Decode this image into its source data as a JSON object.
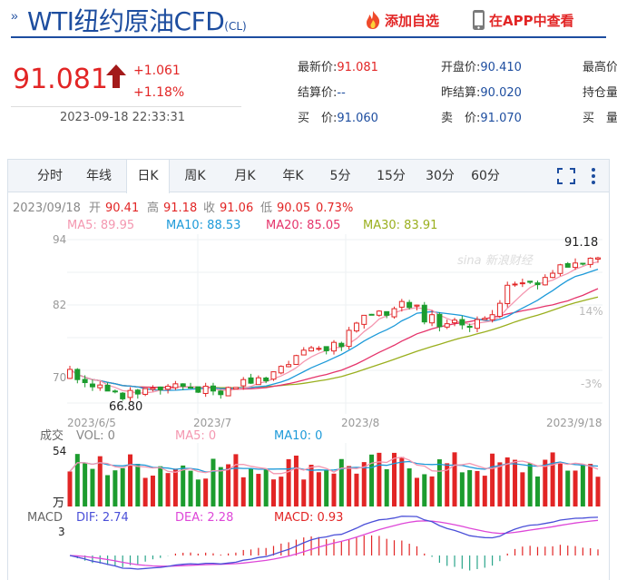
{
  "header": {
    "title": "WTI纽约原油CFD",
    "code": "(CL)",
    "add_watchlist": "添加自选",
    "view_app": "在APP中查看"
  },
  "quote": {
    "price": "91.081",
    "change": "+1.061",
    "change_pct": "+1.18%",
    "time": "2023-09-18 22:33:31",
    "fields": [
      {
        "label": "最新价:",
        "value": "91.081",
        "color": "red"
      },
      {
        "label": "开盘价:",
        "value": "90.410",
        "color": "blue"
      },
      {
        "label": "最高价:",
        "value": "",
        "color": "blue"
      },
      {
        "label": "结算价:",
        "value": "--",
        "color": "blue"
      },
      {
        "label": "昨结算:",
        "value": "90.020",
        "color": "blue"
      },
      {
        "label": "持仓量:",
        "value": "",
        "color": "blue"
      },
      {
        "label": "买　价:",
        "value": "91.060",
        "color": "blue"
      },
      {
        "label": "卖　价:",
        "value": "91.070",
        "color": "blue"
      },
      {
        "label": "买　量:",
        "value": "",
        "color": "blue"
      }
    ]
  },
  "tabs": [
    "分时",
    "年线",
    "日K",
    "周K",
    "月K",
    "年K",
    "5分",
    "15分",
    "30分",
    "60分"
  ],
  "active_tab": "日K",
  "icons": [
    "fullscreen-icon",
    "more-vertical-icon"
  ],
  "colors": {
    "up": "#e22525",
    "down": "#1c9c2e",
    "ma5": "#f497b0",
    "ma10": "#1d9ad9",
    "ma20": "#e5346b",
    "ma30": "#9aaf1e",
    "dif": "#4a4fd8",
    "dea": "#de47d8",
    "brand": "#1d4d9f"
  },
  "chart_data": {
    "type": "candlestick",
    "info_line": {
      "date": "2023/09/18",
      "open_label": "开",
      "open": "90.41",
      "high_label": "高",
      "high": "91.18",
      "close_label": "收",
      "close": "91.06",
      "low_label": "低",
      "low": "90.05",
      "pct": "0.73%"
    },
    "ma_legend": [
      {
        "name": "MA5",
        "value": "89.95"
      },
      {
        "name": "MA10",
        "value": "88.53"
      },
      {
        "name": "MA20",
        "value": "85.05"
      },
      {
        "name": "MA30",
        "value": "83.91"
      }
    ],
    "y_ticks_left": [
      "94",
      "82",
      "70"
    ],
    "y_ticks_right": [
      "14%",
      "-3%"
    ],
    "x_ticks": [
      "2023/6/5",
      "2023/7",
      "2023/8",
      "2023/9/18"
    ],
    "high_annotation": "91.18",
    "low_annotation": "66.80",
    "ylim": [
      66,
      95
    ],
    "closes": [
      72.5,
      70.8,
      70.3,
      69.6,
      69.9,
      68.9,
      68.8,
      67.6,
      69.0,
      68.4,
      69.3,
      69.4,
      69.1,
      69.7,
      70.1,
      69.7,
      69.5,
      68.7,
      69.7,
      68.9,
      68.3,
      69.5,
      69.5,
      70.8,
      70.2,
      71.1,
      70.6,
      72.1,
      73.0,
      73.3,
      74.8,
      75.7,
      76.1,
      76.0,
      75.6,
      77.0,
      76.3,
      79.0,
      80.2,
      81.5,
      81.6,
      82.2,
      81.5,
      82.6,
      83.8,
      82.8,
      83.2,
      80.4,
      81.6,
      79.6,
      80.1,
      80.7,
      79.9,
      79.5,
      80.8,
      81.0,
      81.6,
      83.5,
      86.5,
      86.7,
      86.9,
      87.0,
      86.6,
      87.8,
      88.5,
      89.9,
      89.5,
      90.2,
      90.1,
      91.0,
      91.06
    ],
    "volume": {
      "label": "成交",
      "vol": "VOL: 0",
      "ma5": "MA5: 0",
      "ma10": "MA10: 0",
      "y_top": "54",
      "unit": "万"
    },
    "macd": {
      "label": "MACD",
      "dif": "DIF: 2.74",
      "dea": "DEA: 2.28",
      "macd": "MACD: 0.93",
      "y_top": "3"
    },
    "watermark": "sina 新浪财经"
  }
}
